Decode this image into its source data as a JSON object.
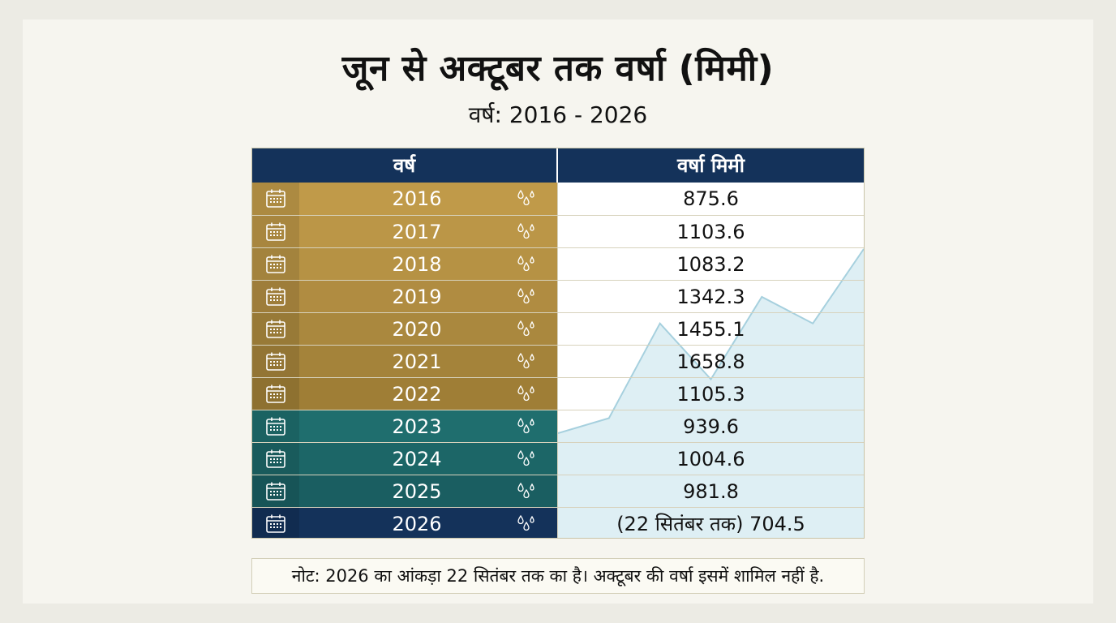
{
  "title": "जून से अक्टूबर तक वर्षा (मिमी)",
  "subtitle": "वर्ष: 2016 - 2026",
  "table": {
    "col_year": "वर्ष",
    "col_rain": "वर्षा मिमी",
    "rows": [
      {
        "year": "2016",
        "value": "875.6"
      },
      {
        "year": "2017",
        "value": "1103.6"
      },
      {
        "year": "2018",
        "value": "1083.2"
      },
      {
        "year": "2019",
        "value": "1342.3"
      },
      {
        "year": "2020",
        "value": "1455.1"
      },
      {
        "year": "2021",
        "value": "1658.8"
      },
      {
        "year": "2022",
        "value": "1105.3"
      },
      {
        "year": "2023",
        "value": "939.6"
      },
      {
        "year": "2024",
        "value": "1004.6"
      },
      {
        "year": "2025",
        "value": "981.8"
      },
      {
        "year": "2026",
        "value": "(22 सितंबर तक) 704.5"
      }
    ]
  },
  "note": "नोट: 2026 का आंकड़ा 22 सितंबर तक का है। अक्टूबर की वर्षा इसमें शामिल नहीं है.",
  "colors": {
    "header": "#14325a",
    "row_shades": [
      "#c09a49",
      "#bb9647",
      "#b69244",
      "#b08c41",
      "#aa883e",
      "#a4833a",
      "#9f7e36",
      "#1f6e6e",
      "#1c6667",
      "#1a5e61",
      "#14325a"
    ],
    "area_fill": "#d8ecf2",
    "area_line": "#a6d0de"
  },
  "icons": {
    "year_icon": "calendar-icon",
    "rain_icon": "raindrops-icon"
  },
  "chart_data": {
    "type": "table",
    "columns": [
      "वर्ष",
      "वर्षा मिमी"
    ],
    "x": [
      2016,
      2017,
      2018,
      2019,
      2020,
      2021,
      2022,
      2023,
      2024,
      2025,
      2026
    ],
    "values": [
      875.6,
      1103.6,
      1083.2,
      1342.3,
      1455.1,
      1658.8,
      1105.3,
      939.6,
      1004.6,
      981.8,
      704.5
    ],
    "background_series": {
      "type": "area",
      "values": [
        875.6,
        939.6,
        1342.3,
        1105.3,
        1455.1,
        1342.3,
        1658.8
      ]
    }
  }
}
